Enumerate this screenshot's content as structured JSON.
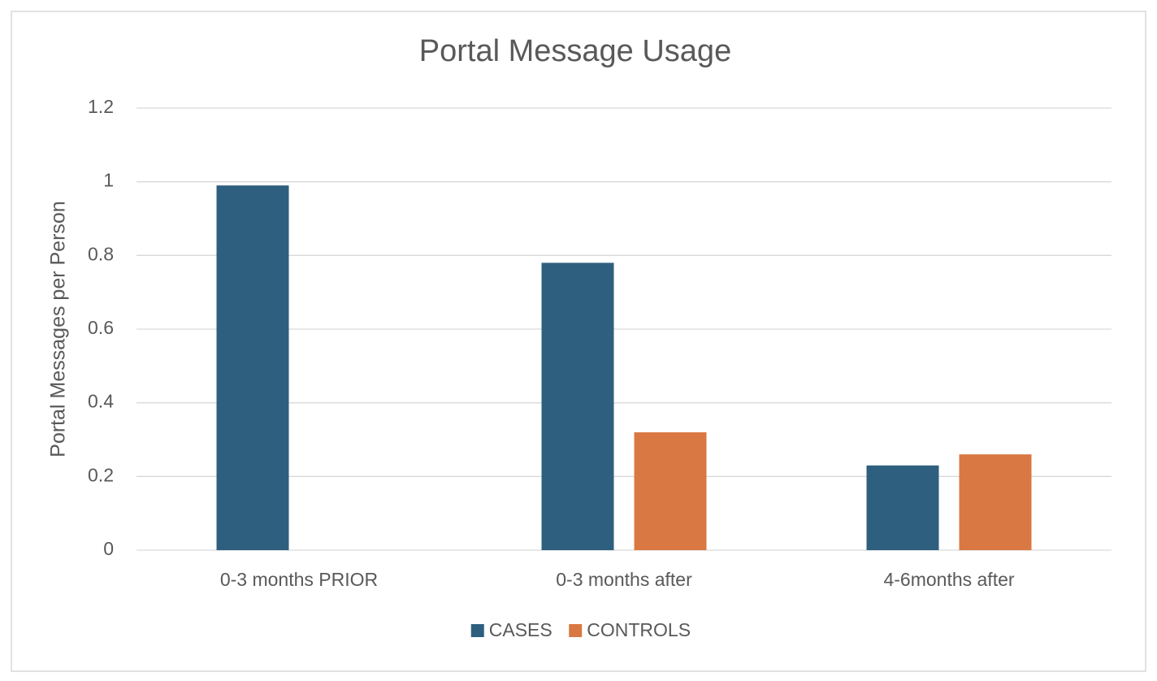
{
  "chart_data": {
    "type": "bar",
    "title": "Portal Message Usage",
    "y_label": "Portal Messages per Person",
    "categories": [
      "0-3 months PRIOR",
      "0-3 months after",
      "4-6months after"
    ],
    "series": [
      {
        "name": "CASES",
        "color": "#2e5f7f",
        "values": [
          0.99,
          0.78,
          0.23
        ]
      },
      {
        "name": "CONTROLS",
        "color": "#d97843",
        "values": [
          null,
          0.32,
          0.26
        ]
      }
    ],
    "ylim": [
      0,
      1.2
    ],
    "yticks": [
      0,
      0.2,
      0.4,
      0.6,
      0.8,
      1,
      1.2
    ],
    "grid": true,
    "legend": "bottom"
  }
}
